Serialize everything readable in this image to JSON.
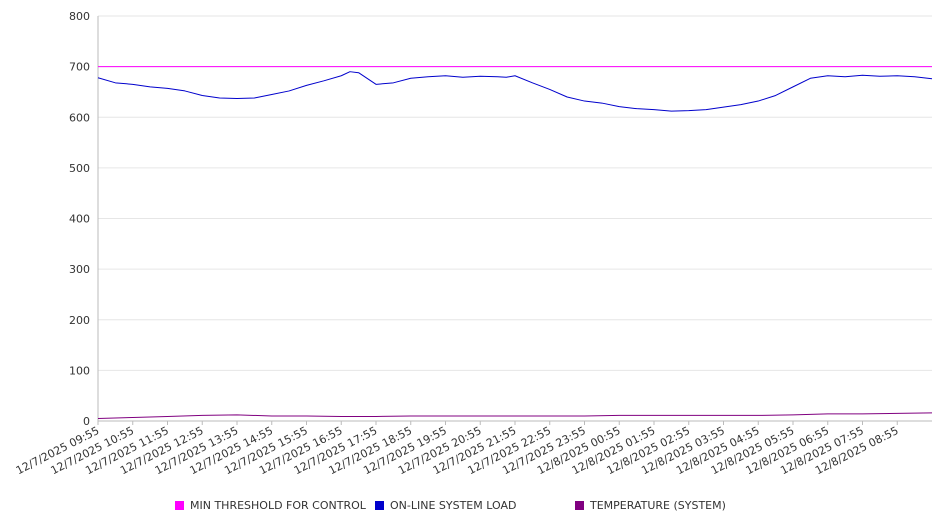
{
  "chart_data": {
    "type": "line",
    "title": "",
    "xlabel": "",
    "ylabel": "",
    "ylim": [
      0,
      800
    ],
    "yticks": [
      0,
      100,
      200,
      300,
      400,
      500,
      600,
      700,
      800
    ],
    "grid": true,
    "legend_position": "bottom",
    "x_tick_labels": [
      "12/7/2025 09:55",
      "12/7/2025 10:55",
      "12/7/2025 11:55",
      "12/7/2025 12:55",
      "12/7/2025 13:55",
      "12/7/2025 14:55",
      "12/7/2025 15:55",
      "12/7/2025 16:55",
      "12/7/2025 17:55",
      "12/7/2025 18:55",
      "12/7/2025 19:55",
      "12/7/2025 20:55",
      "12/7/2025 21:55",
      "12/7/2025 22:55",
      "12/7/2025 23:55",
      "12/8/2025 00:55",
      "12/8/2025 01:55",
      "12/8/2025 02:55",
      "12/8/2025 03:55",
      "12/8/2025 04:55",
      "12/8/2025 05:55",
      "12/8/2025 06:55",
      "12/8/2025 07:55",
      "12/8/2025 08:55"
    ],
    "series": [
      {
        "name": "MIN THRESHOLD FOR CONTROL",
        "color": "#ff00ff",
        "x": [
          "12/7/2025 09:55",
          "12/8/2025 09:55"
        ],
        "values": [
          700,
          700
        ]
      },
      {
        "name": "ON-LINE SYSTEM LOAD",
        "color": "#0000cc",
        "x": [
          "12/7/2025 09:55",
          "12/7/2025 10:25",
          "12/7/2025 10:55",
          "12/7/2025 11:25",
          "12/7/2025 11:55",
          "12/7/2025 12:25",
          "12/7/2025 12:55",
          "12/7/2025 13:25",
          "12/7/2025 13:55",
          "12/7/2025 14:25",
          "12/7/2025 14:55",
          "12/7/2025 15:25",
          "12/7/2025 15:55",
          "12/7/2025 16:25",
          "12/7/2025 16:55",
          "12/7/2025 17:10",
          "12/7/2025 17:25",
          "12/7/2025 17:55",
          "12/7/2025 18:25",
          "12/7/2025 18:55",
          "12/7/2025 19:25",
          "12/7/2025 19:55",
          "12/7/2025 20:25",
          "12/7/2025 20:55",
          "12/7/2025 21:25",
          "12/7/2025 21:40",
          "12/7/2025 21:55",
          "12/7/2025 22:25",
          "12/7/2025 22:55",
          "12/7/2025 23:25",
          "12/7/2025 23:55",
          "12/8/2025 00:25",
          "12/8/2025 00:55",
          "12/8/2025 01:25",
          "12/8/2025 01:55",
          "12/8/2025 02:25",
          "12/8/2025 02:55",
          "12/8/2025 03:25",
          "12/8/2025 03:55",
          "12/8/2025 04:25",
          "12/8/2025 04:55",
          "12/8/2025 05:25",
          "12/8/2025 05:55",
          "12/8/2025 06:25",
          "12/8/2025 06:55",
          "12/8/2025 07:25",
          "12/8/2025 07:55",
          "12/8/2025 08:25",
          "12/8/2025 08:55",
          "12/8/2025 09:25",
          "12/8/2025 09:55"
        ],
        "values": [
          678,
          668,
          665,
          660,
          657,
          652,
          643,
          638,
          637,
          638,
          645,
          652,
          663,
          672,
          682,
          690,
          688,
          665,
          668,
          677,
          680,
          682,
          679,
          681,
          680,
          679,
          682,
          668,
          655,
          640,
          632,
          628,
          621,
          617,
          615,
          612,
          613,
          615,
          620,
          625,
          632,
          643,
          660,
          677,
          682,
          680,
          683,
          681,
          682,
          680,
          676
        ]
      },
      {
        "name": "TEMPERATURE (SYSTEM)",
        "color": "#800080",
        "x": [
          "12/7/2025 09:55",
          "12/7/2025 10:55",
          "12/7/2025 11:55",
          "12/7/2025 12:55",
          "12/7/2025 13:55",
          "12/7/2025 14:55",
          "12/7/2025 15:55",
          "12/7/2025 16:55",
          "12/7/2025 17:55",
          "12/7/2025 18:55",
          "12/7/2025 19:55",
          "12/7/2025 20:55",
          "12/7/2025 21:55",
          "12/7/2025 22:55",
          "12/7/2025 23:55",
          "12/8/2025 00:55",
          "12/8/2025 01:55",
          "12/8/2025 02:55",
          "12/8/2025 03:55",
          "12/8/2025 04:55",
          "12/8/2025 05:55",
          "12/8/2025 06:55",
          "12/8/2025 07:55",
          "12/8/2025 08:55",
          "12/8/2025 09:55"
        ],
        "values": [
          5,
          7,
          9,
          11,
          12,
          10,
          10,
          9,
          9,
          10,
          10,
          10,
          10,
          10,
          10,
          11,
          11,
          11,
          11,
          11,
          12,
          14,
          14,
          15,
          16
        ]
      }
    ]
  }
}
